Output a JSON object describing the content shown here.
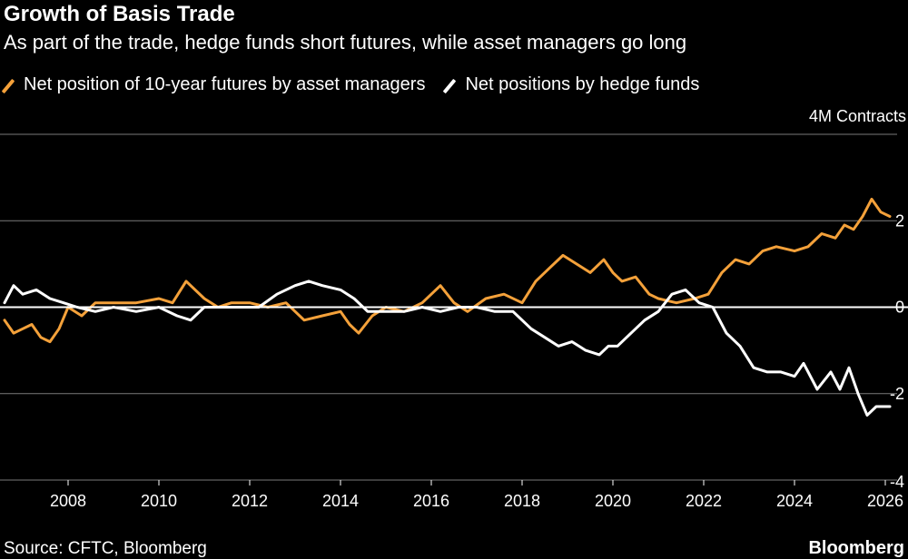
{
  "chart_data": {
    "type": "line",
    "title": "Growth of Basis Trade",
    "subtitle": "As part of the trade, hedge funds short futures, while asset managers go long",
    "unit_label": "4M Contracts",
    "source": "Source: CFTC, Bloomberg",
    "brand": "Bloomberg",
    "xlim": [
      2006.5,
      2026.5
    ],
    "ylim": [
      -4,
      4
    ],
    "y_ticks": [
      2,
      0,
      -2,
      -4
    ],
    "y_tick_labels": [
      "2",
      "0",
      "-2",
      "-4"
    ],
    "y_gridlines": [
      4,
      2,
      -2,
      -4
    ],
    "x_ticks": [
      2008,
      2010,
      2012,
      2014,
      2016,
      2018,
      2020,
      2022,
      2024,
      2026
    ],
    "x_tick_labels": [
      "2008",
      "2010",
      "2012",
      "2014",
      "2016",
      "2018",
      "2020",
      "2022",
      "2024",
      "2026"
    ],
    "legend_position": "top-left",
    "series": [
      {
        "name": "Net position of 10-year futures by asset managers",
        "color": "#f4a13a",
        "x": [
          2006.6,
          2006.8,
          2007.0,
          2007.2,
          2007.4,
          2007.6,
          2007.8,
          2008.0,
          2008.3,
          2008.6,
          2009.0,
          2009.5,
          2010.0,
          2010.3,
          2010.6,
          2011.0,
          2011.3,
          2011.6,
          2012.0,
          2012.4,
          2012.8,
          2013.2,
          2013.6,
          2014.0,
          2014.2,
          2014.4,
          2014.7,
          2015.0,
          2015.4,
          2015.8,
          2016.0,
          2016.2,
          2016.5,
          2016.8,
          2017.2,
          2017.6,
          2018.0,
          2018.3,
          2018.6,
          2018.9,
          2019.2,
          2019.5,
          2019.8,
          2020.0,
          2020.2,
          2020.5,
          2020.8,
          2021.0,
          2021.4,
          2021.8,
          2022.1,
          2022.4,
          2022.7,
          2023.0,
          2023.3,
          2023.6,
          2024.0,
          2024.3,
          2024.6,
          2024.9,
          2025.1,
          2025.3,
          2025.5,
          2025.7,
          2025.9,
          2026.1
        ],
        "values": [
          -0.3,
          -0.6,
          -0.5,
          -0.4,
          -0.7,
          -0.8,
          -0.5,
          0.0,
          -0.2,
          0.1,
          0.1,
          0.1,
          0.2,
          0.1,
          0.6,
          0.2,
          0.0,
          0.1,
          0.1,
          0.0,
          0.1,
          -0.3,
          -0.2,
          -0.1,
          -0.4,
          -0.6,
          -0.2,
          0.0,
          -0.1,
          0.1,
          0.3,
          0.5,
          0.1,
          -0.1,
          0.2,
          0.3,
          0.1,
          0.6,
          0.9,
          1.2,
          1.0,
          0.8,
          1.1,
          0.8,
          0.6,
          0.7,
          0.3,
          0.2,
          0.1,
          0.2,
          0.3,
          0.8,
          1.1,
          1.0,
          1.3,
          1.4,
          1.3,
          1.4,
          1.7,
          1.6,
          1.9,
          1.8,
          2.1,
          2.5,
          2.2,
          2.1
        ]
      },
      {
        "name": "Net positions by hedge funds",
        "color": "#ffffff",
        "x": [
          2006.6,
          2006.8,
          2007.0,
          2007.3,
          2007.6,
          2007.9,
          2008.2,
          2008.6,
          2009.0,
          2009.5,
          2010.0,
          2010.4,
          2010.7,
          2011.0,
          2011.4,
          2011.8,
          2012.2,
          2012.6,
          2013.0,
          2013.3,
          2013.6,
          2014.0,
          2014.3,
          2014.6,
          2015.0,
          2015.4,
          2015.8,
          2016.2,
          2016.6,
          2017.0,
          2017.4,
          2017.8,
          2018.2,
          2018.5,
          2018.8,
          2019.1,
          2019.4,
          2019.7,
          2019.9,
          2020.1,
          2020.4,
          2020.7,
          2021.0,
          2021.3,
          2021.6,
          2021.9,
          2022.2,
          2022.5,
          2022.8,
          2023.1,
          2023.4,
          2023.7,
          2024.0,
          2024.2,
          2024.5,
          2024.8,
          2025.0,
          2025.2,
          2025.4,
          2025.6,
          2025.8,
          2026.0,
          2026.1
        ],
        "values": [
          0.1,
          0.5,
          0.3,
          0.4,
          0.2,
          0.1,
          0.0,
          -0.1,
          0.0,
          -0.1,
          0.0,
          -0.2,
          -0.3,
          0.0,
          0.0,
          0.0,
          0.0,
          0.3,
          0.5,
          0.6,
          0.5,
          0.4,
          0.2,
          -0.1,
          -0.1,
          -0.1,
          0.0,
          -0.1,
          0.0,
          0.0,
          -0.1,
          -0.1,
          -0.5,
          -0.7,
          -0.9,
          -0.8,
          -1.0,
          -1.1,
          -0.9,
          -0.9,
          -0.6,
          -0.3,
          -0.1,
          0.3,
          0.4,
          0.1,
          0.0,
          -0.6,
          -0.9,
          -1.4,
          -1.5,
          -1.5,
          -1.6,
          -1.3,
          -1.9,
          -1.5,
          -1.9,
          -1.4,
          -2.0,
          -2.5,
          -2.3,
          -2.3,
          -2.3
        ]
      }
    ]
  }
}
